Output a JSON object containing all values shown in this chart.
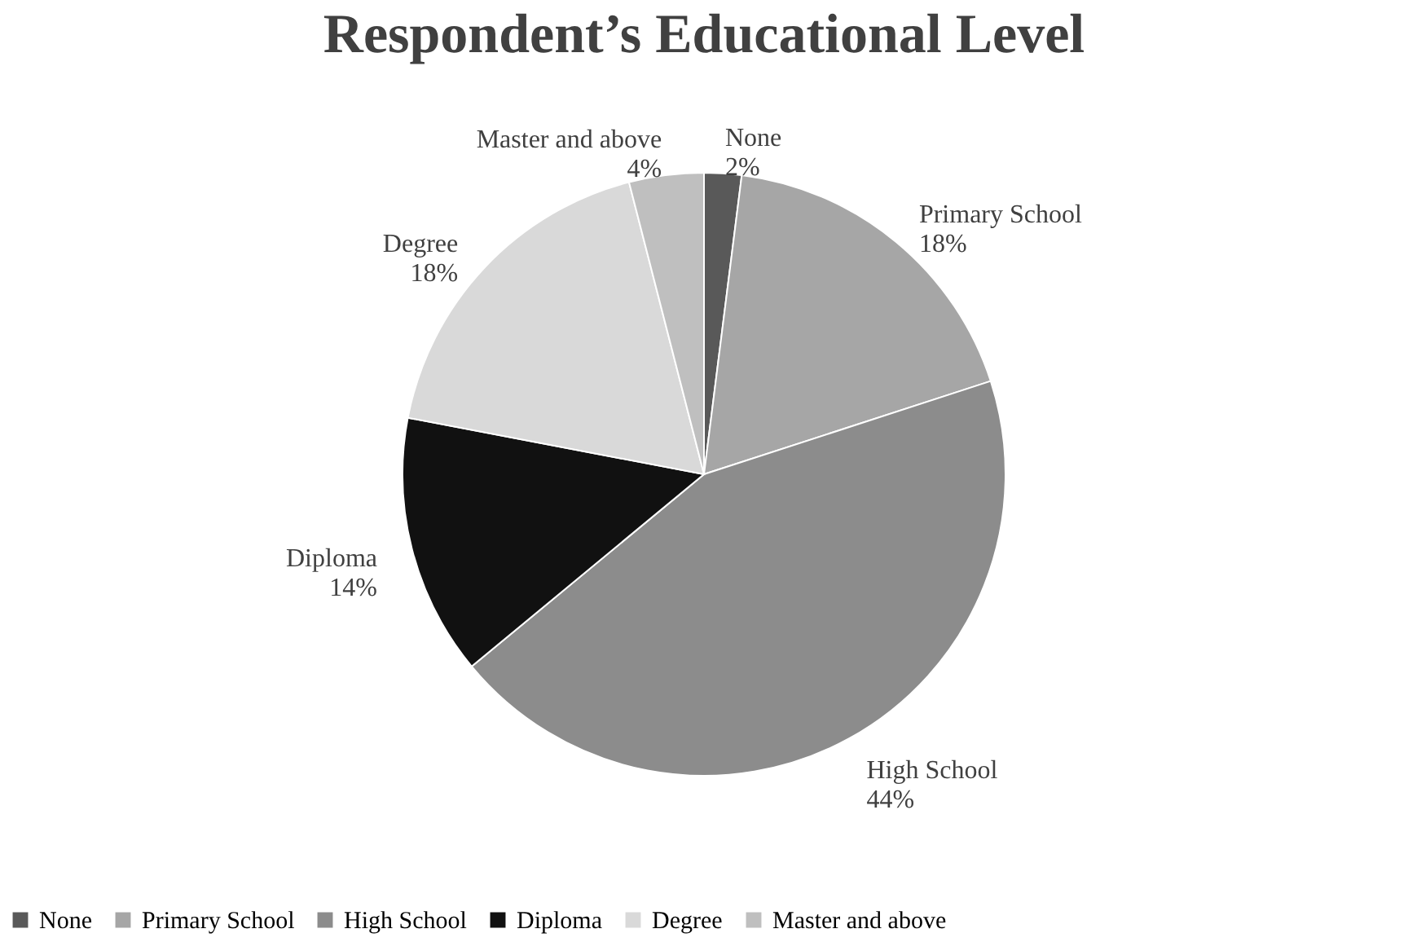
{
  "chart_data": {
    "type": "pie",
    "title": "Respondent’s Educational Level",
    "categories": [
      "None",
      "Primary School",
      "High School",
      "Diploma",
      "Degree",
      "Master and above"
    ],
    "values": [
      2,
      18,
      44,
      14,
      18,
      4
    ],
    "value_labels": [
      "2%",
      "18%",
      "44%",
      "14%",
      "18%",
      "4%"
    ],
    "colors": [
      "#595959",
      "#a6a6a6",
      "#8c8c8c",
      "#111111",
      "#d9d9d9",
      "#bfbfbf"
    ],
    "legend": "bottom"
  }
}
